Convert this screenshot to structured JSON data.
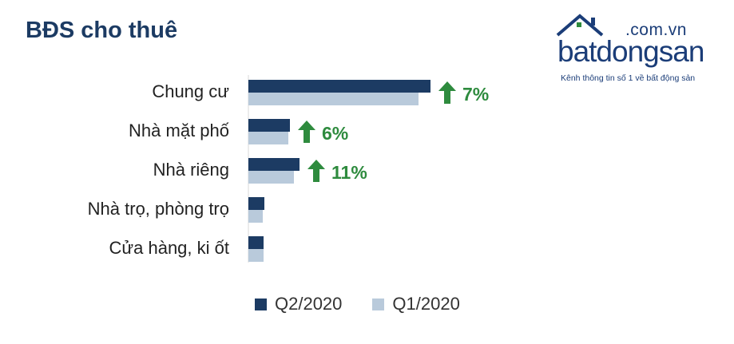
{
  "title": "BĐS cho thuê",
  "logo": {
    "domain": ".com.vn",
    "wordmark": "batdongsan",
    "slogan": "Kênh thông tin số 1 về bất động sản",
    "color": "#1b3d78"
  },
  "colors": {
    "q2": "#1c3b63",
    "q1": "#b9cadb",
    "growth": "#2e8b3e"
  },
  "chart_data": {
    "type": "bar",
    "orientation": "horizontal",
    "title": "BĐS cho thuê",
    "categories": [
      "Chung cư",
      "Nhà mặt phố",
      "Nhà riêng",
      "Nhà trọ, phòng trọ",
      "Cửa hàng, ki ốt"
    ],
    "series": [
      {
        "name": "Q2/2020",
        "values": [
          228,
          52,
          64,
          20,
          19
        ]
      },
      {
        "name": "Q1/2020",
        "values": [
          213,
          50,
          57,
          18,
          19
        ]
      }
    ],
    "annotations": [
      "7%",
      "6%",
      "11%",
      null,
      null
    ],
    "annotation_icon": "up-arrow-icon",
    "grid": false,
    "legend": "bottom"
  }
}
